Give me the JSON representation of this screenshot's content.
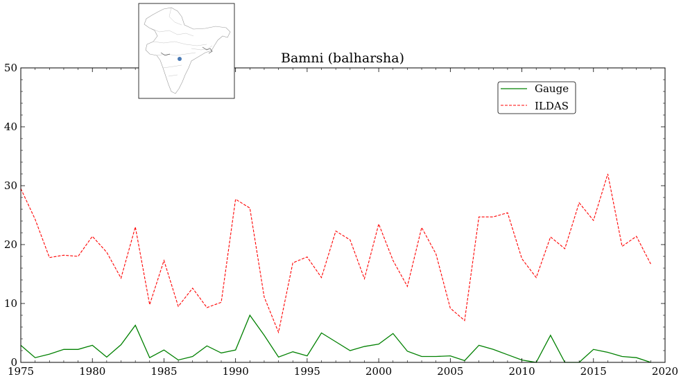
{
  "chart_data": {
    "type": "line",
    "title": "Bamni (balharsha)",
    "xlabel": "",
    "ylabel": "",
    "xlim": [
      1975,
      2020
    ],
    "ylim": [
      0,
      50
    ],
    "xticks": [
      1975,
      1980,
      1985,
      1990,
      1995,
      2000,
      2005,
      2010,
      2015,
      2020
    ],
    "yticks": [
      0,
      10,
      20,
      30,
      40,
      50
    ],
    "grid": false,
    "legend_position": "top-right",
    "x": [
      1975,
      1976,
      1977,
      1978,
      1979,
      1980,
      1981,
      1982,
      1983,
      1984,
      1985,
      1986,
      1987,
      1988,
      1989,
      1990,
      1991,
      1992,
      1993,
      1994,
      1995,
      1996,
      1997,
      1998,
      1999,
      2000,
      2001,
      2002,
      2003,
      2004,
      2005,
      2006,
      2007,
      2008,
      2009,
      2010,
      2011,
      2012,
      2013,
      2014,
      2015,
      2016,
      2017,
      2018,
      2019
    ],
    "series": [
      {
        "name": "Gauge",
        "color": "#008000",
        "style": "solid",
        "values": [
          2.9,
          0.8,
          1.4,
          2.2,
          2.2,
          2.9,
          0.9,
          3.0,
          6.3,
          0.8,
          2.1,
          0.4,
          1.0,
          2.8,
          1.6,
          2.1,
          8.0,
          4.6,
          0.9,
          1.8,
          1.1,
          5.0,
          3.5,
          2.0,
          2.7,
          3.1,
          4.9,
          1.9,
          1.0,
          1.0,
          1.1,
          0.3,
          2.9,
          2.2,
          1.3,
          0.4,
          0.0,
          4.6,
          0.0,
          0.0,
          2.2,
          1.7,
          1.0,
          0.8,
          0.0
        ]
      },
      {
        "name": "ILDAS",
        "color": "#ff0000",
        "style": "dashed",
        "values": [
          29.5,
          24.3,
          17.8,
          18.2,
          18.0,
          21.4,
          18.7,
          14.3,
          23.0,
          9.8,
          17.3,
          9.5,
          12.6,
          9.3,
          10.2,
          27.7,
          26.2,
          11.1,
          5.1,
          16.9,
          17.9,
          14.4,
          22.3,
          20.8,
          14.2,
          23.5,
          17.3,
          12.9,
          22.9,
          18.4,
          9.2,
          7.1,
          24.7,
          24.7,
          25.4,
          17.6,
          14.4,
          21.3,
          19.3,
          27.1,
          24.1,
          32.0,
          19.7,
          21.4,
          16.7
        ]
      }
    ]
  },
  "inset_map": {
    "description_icon": "india-map-icon",
    "marker_color": "#4a7ab5"
  }
}
